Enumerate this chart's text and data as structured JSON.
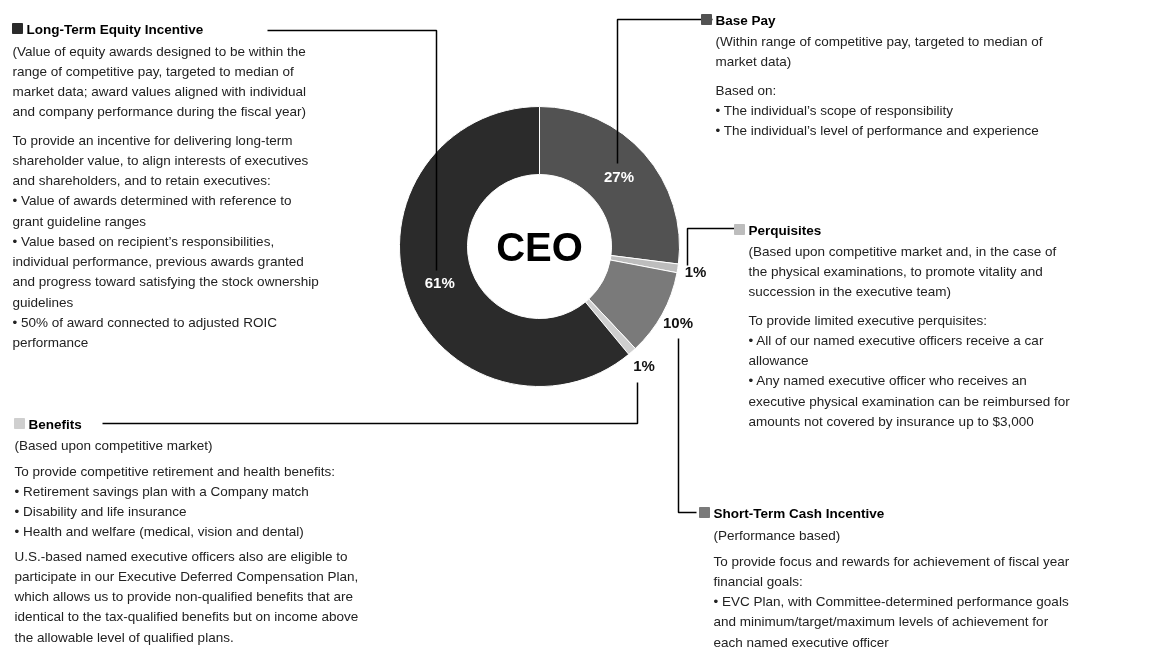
{
  "chart_data": {
    "type": "donut",
    "title": "CEO",
    "categories": [
      "Base Pay",
      "Perquisites",
      "Short-Term Cash Incentive",
      "Benefits",
      "Long-Term Equity Incentive"
    ],
    "values": [
      27,
      1,
      10,
      1,
      61
    ],
    "colors": [
      "#525252",
      "#bdbdbd",
      "#7a7a7a",
      "#cfcfcf",
      "#2b2b2b"
    ],
    "legend": "bottom left",
    "value_labels": [
      "27%",
      "1%",
      "10%",
      "1%",
      "61%"
    ],
    "annotations": [
      "(Value of equity awards designed to be within the\nrange of competitive pay, targeted to median of\nmarket data; award values aligned with individual\nand company performance during the fiscal year)",
      "To provide an incentive for delivering long-term\nshareholder value, to align interests of executives\nand shareholders, and to retain executives:\n• Value of awards determined with reference to\ngrant guideline ranges\n•  Value based on recipient’s responsibilities,\nindividual performance, previous awards granted\nand progress toward satisfying the stock ownership\nguidelines\n• 50% of award connected to adjusted ROIC\nperformance",
      "(Within range of competitive pay, targeted to median of\nmarket data)",
      "Based on:\n•  The individual’s scope of responsibility\n•  The individual’s level of performance and experience",
      "(Based upon competitive market and, in the case of\nthe physical examinations, to promote vitality and\nsuccession in the executive team)",
      "To provide limited executive perquisites:\n•  All of our named executive officers receive a car\nallowance\n•  Any named executive officer who receives an\nexecutive physical examination can be reimbursed for\namounts not covered by insurance up to $3,000",
      "(Performance based)",
      "To provide focus and rewards for achievement of fiscal year\nfinancial goals:\n• EVC Plan, with Committee-determined performance goals\nand minimum/target/maximum levels of achievement for\neach named executive officer",
      "(Based upon competitive market)",
      "To provide competitive retirement and health benefits:\n• Retirement savings plan with a Company match\n• Disability and life insurance\n•  Health and welfare (medical, vision and dental)",
      "U.S.-based named executive officers also are eligible to\nparticipate in our Executive Deferred Compensation Plan,\nwhich allows us to provide non-qualified benefits that are\nidentical to the tax-qualified benefits but on income above\nthe allowable level of qualified plans."
    ]
  }
}
